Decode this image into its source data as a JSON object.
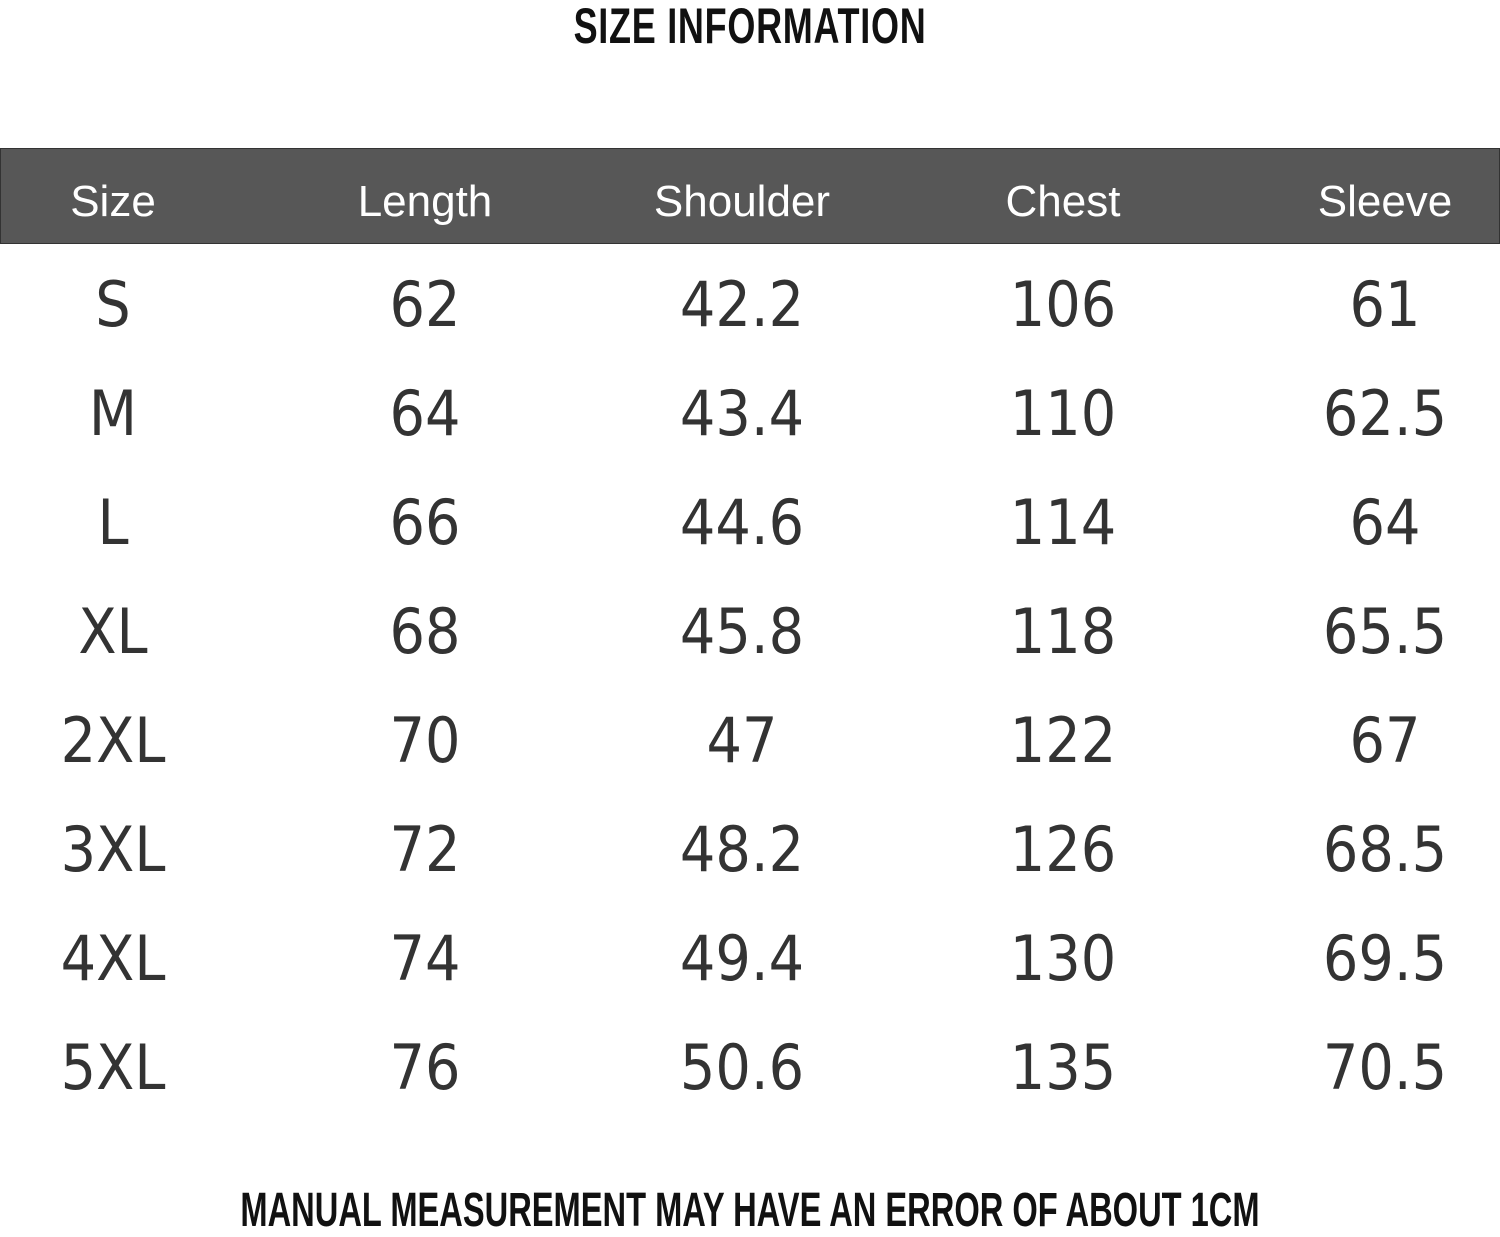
{
  "title": "SIZE INFORMATION",
  "table": {
    "headers": [
      "Size",
      "Length",
      "Shoulder",
      "Chest",
      "Sleeve"
    ],
    "rows": [
      [
        "S",
        "62",
        "42.2",
        "106",
        "61"
      ],
      [
        "M",
        "64",
        "43.4",
        "110",
        "62.5"
      ],
      [
        "L",
        "66",
        "44.6",
        "114",
        "64"
      ],
      [
        "XL",
        "68",
        "45.8",
        "118",
        "65.5"
      ],
      [
        "2XL",
        "70",
        "47",
        "122",
        "67"
      ],
      [
        "3XL",
        "72",
        "48.2",
        "126",
        "68.5"
      ],
      [
        "4XL",
        "74",
        "49.4",
        "130",
        "69.5"
      ],
      [
        "5XL",
        "76",
        "50.6",
        "135",
        "70.5"
      ]
    ]
  },
  "note": "MANUAL MEASUREMENT MAY HAVE AN ERROR OF ABOUT 1CM"
}
